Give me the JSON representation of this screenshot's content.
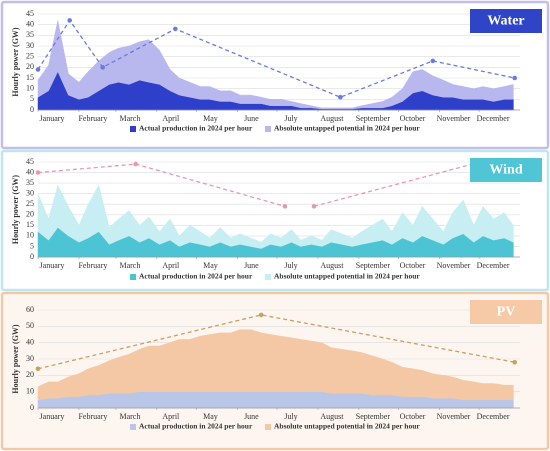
{
  "chart_data": [
    {
      "type": "area",
      "title": "Water",
      "ylabel": "Hourly power (GW)",
      "title_box_color": "#2f44c6",
      "x": [
        1,
        9,
        16,
        24,
        32,
        39,
        47,
        55,
        62,
        70,
        78,
        85,
        93,
        101,
        108,
        116,
        124,
        131,
        139,
        147,
        154,
        162,
        170,
        177,
        185,
        193,
        200,
        208,
        216,
        223,
        231,
        239,
        246,
        254,
        262,
        269,
        277,
        285,
        292,
        300,
        308,
        315,
        323,
        331,
        338,
        346,
        354,
        361
      ],
      "xlim": [
        1,
        366
      ],
      "xticks": [
        {
          "value": 1,
          "label": "January"
        },
        {
          "value": 32,
          "label": "February"
        },
        {
          "value": 60,
          "label": "March"
        },
        {
          "value": 91,
          "label": "April"
        },
        {
          "value": 121,
          "label": "May"
        },
        {
          "value": 152,
          "label": "June"
        },
        {
          "value": 182,
          "label": "July"
        },
        {
          "value": 213,
          "label": "August"
        },
        {
          "value": 244,
          "label": "September"
        },
        {
          "value": 274,
          "label": "October"
        },
        {
          "value": 305,
          "label": "November"
        },
        {
          "value": 335,
          "label": "December"
        }
      ],
      "ylim": [
        0,
        45
      ],
      "yticks": [
        0,
        5,
        10,
        15,
        20,
        25,
        30,
        35,
        40,
        45
      ],
      "grid": true,
      "stacked": true,
      "series": [
        {
          "name": "Actual production in 2024 per hour",
          "color": "#2e3fc9",
          "values": [
            6,
            9,
            18,
            7,
            5,
            6,
            9,
            12,
            13,
            12,
            14,
            13,
            12,
            9,
            7,
            6,
            5,
            5,
            4,
            4,
            3,
            3,
            3,
            2,
            2,
            2,
            1,
            1,
            0.5,
            0.5,
            0.5,
            0.5,
            1,
            1,
            1,
            2,
            4,
            8,
            9,
            7,
            6,
            6,
            5,
            5,
            5,
            4,
            5,
            5
          ]
        },
        {
          "name": "Absolute untapped potential in 2024 per hour",
          "color": "#b8b8ee",
          "values": [
            8,
            12,
            24,
            10,
            8,
            12,
            14,
            15,
            16,
            18,
            18,
            20,
            16,
            10,
            8,
            7,
            6,
            6,
            5,
            5,
            4,
            4,
            3,
            3,
            3,
            2,
            2,
            1,
            0.5,
            0.5,
            0.5,
            0.5,
            1,
            2,
            3,
            4,
            6,
            10,
            10,
            9,
            8,
            6,
            6,
            5,
            6,
            6,
            6,
            7
          ]
        }
      ],
      "peak_line": {
        "color": "#6a7be0",
        "x": [
          1,
          25,
          50,
          105,
          230,
          300,
          362
        ],
        "values": [
          19,
          42,
          20,
          38,
          6,
          23,
          15
        ]
      }
    },
    {
      "type": "area",
      "title": "Wind",
      "ylabel": "Hourly power (GW)",
      "title_box_color": "#4fc5d6",
      "x": [
        1,
        9,
        16,
        24,
        32,
        39,
        47,
        55,
        62,
        70,
        78,
        85,
        93,
        101,
        108,
        116,
        124,
        131,
        139,
        147,
        154,
        162,
        170,
        177,
        185,
        193,
        200,
        208,
        216,
        223,
        231,
        239,
        246,
        254,
        262,
        269,
        277,
        285,
        292,
        300,
        308,
        315,
        323,
        331,
        338,
        346,
        354,
        361
      ],
      "xlim": [
        1,
        366
      ],
      "xticks": [
        {
          "value": 1,
          "label": "January"
        },
        {
          "value": 32,
          "label": "February"
        },
        {
          "value": 60,
          "label": "March"
        },
        {
          "value": 91,
          "label": "April"
        },
        {
          "value": 121,
          "label": "May"
        },
        {
          "value": 152,
          "label": "June"
        },
        {
          "value": 182,
          "label": "July"
        },
        {
          "value": 213,
          "label": "August"
        },
        {
          "value": 244,
          "label": "September"
        },
        {
          "value": 274,
          "label": "October"
        },
        {
          "value": 305,
          "label": "November"
        },
        {
          "value": 335,
          "label": "December"
        }
      ],
      "ylim": [
        0,
        45
      ],
      "yticks": [
        0,
        5,
        10,
        15,
        20,
        25,
        30,
        35,
        40,
        45
      ],
      "grid": true,
      "stacked": true,
      "series": [
        {
          "name": "Actual production in 2024 per hour",
          "color": "#4cc4d4",
          "values": [
            12,
            8,
            14,
            10,
            7,
            9,
            12,
            6,
            8,
            10,
            7,
            9,
            6,
            8,
            5,
            7,
            6,
            5,
            7,
            5,
            6,
            5,
            4,
            6,
            5,
            7,
            5,
            6,
            5,
            7,
            6,
            5,
            6,
            7,
            8,
            6,
            9,
            7,
            10,
            8,
            6,
            9,
            11,
            7,
            10,
            8,
            9,
            7
          ]
        },
        {
          "name": "Absolute untapped potential in 2024 per hour",
          "color": "#c6eef3",
          "values": [
            18,
            10,
            20,
            14,
            8,
            16,
            22,
            8,
            10,
            12,
            8,
            10,
            6,
            10,
            5,
            8,
            6,
            4,
            7,
            4,
            5,
            4,
            3,
            5,
            4,
            6,
            3,
            4,
            3,
            6,
            5,
            4,
            6,
            8,
            10,
            6,
            12,
            8,
            14,
            10,
            6,
            12,
            16,
            8,
            14,
            10,
            12,
            8
          ]
        }
      ],
      "peak_line": {
        "color": "#e59aae",
        "x": [
          1,
          75,
          188,
          200,
          210,
          330
        ],
        "values": [
          40,
          44,
          24,
          null,
          24,
          44
        ]
      }
    },
    {
      "type": "area",
      "title": "PV",
      "ylabel": "Hourly power (GW)",
      "title_box_color": "#f6caa6",
      "x": [
        1,
        9,
        16,
        24,
        32,
        39,
        47,
        55,
        62,
        70,
        78,
        85,
        93,
        101,
        108,
        116,
        124,
        131,
        139,
        147,
        154,
        162,
        170,
        177,
        185,
        193,
        200,
        208,
        216,
        223,
        231,
        239,
        246,
        254,
        262,
        269,
        277,
        285,
        292,
        300,
        308,
        315,
        323,
        331,
        338,
        346,
        354,
        361
      ],
      "xlim": [
        1,
        366
      ],
      "xticks": [
        {
          "value": 1,
          "label": "January"
        },
        {
          "value": 32,
          "label": "February"
        },
        {
          "value": 60,
          "label": "March"
        },
        {
          "value": 91,
          "label": "April"
        },
        {
          "value": 121,
          "label": "May"
        },
        {
          "value": 152,
          "label": "June"
        },
        {
          "value": 182,
          "label": "July"
        },
        {
          "value": 213,
          "label": "August"
        },
        {
          "value": 244,
          "label": "September"
        },
        {
          "value": 274,
          "label": "October"
        },
        {
          "value": 305,
          "label": "November"
        },
        {
          "value": 335,
          "label": "December"
        }
      ],
      "ylim": [
        0,
        60
      ],
      "yticks": [
        0,
        10,
        20,
        30,
        40,
        50,
        60
      ],
      "grid": true,
      "stacked": true,
      "series": [
        {
          "name": "Actual production in 2024 per hour",
          "color": "#b9c6e8",
          "values": [
            5,
            6,
            6,
            7,
            7,
            8,
            8,
            9,
            9,
            9,
            10,
            10,
            10,
            10,
            10,
            10,
            10,
            10,
            10,
            10,
            10,
            10,
            10,
            10,
            10,
            10,
            10,
            10,
            10,
            9,
            9,
            9,
            9,
            8,
            8,
            8,
            7,
            7,
            7,
            6,
            6,
            6,
            5,
            5,
            5,
            5,
            5,
            5
          ]
        },
        {
          "name": "Absolute untapped potential in 2024 per hour",
          "color": "#f5c8a5",
          "values": [
            8,
            10,
            10,
            12,
            14,
            16,
            18,
            20,
            22,
            24,
            26,
            28,
            28,
            30,
            32,
            32,
            34,
            35,
            36,
            36,
            38,
            38,
            36,
            35,
            34,
            33,
            32,
            31,
            30,
            28,
            27,
            26,
            25,
            24,
            22,
            20,
            18,
            17,
            16,
            15,
            14,
            13,
            12,
            11,
            10,
            10,
            9,
            9
          ]
        }
      ],
      "peak_line": {
        "color": "#c9a060",
        "x": [
          1,
          170,
          362
        ],
        "values": [
          24,
          57,
          28
        ]
      }
    }
  ]
}
